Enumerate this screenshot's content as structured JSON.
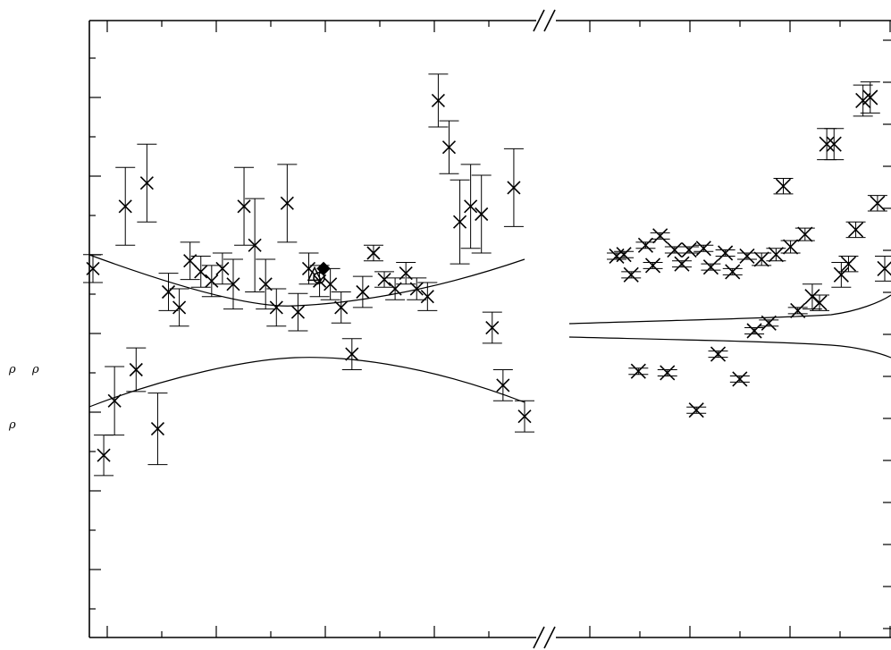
{
  "chart_data": {
    "type": "scatter",
    "title": "",
    "xlabel": "",
    "ylabel_glyphs": [
      "ρ",
      "ρ",
      "ρ"
    ],
    "axis_break": "//",
    "grid": false,
    "legend": "none",
    "color": "#000000",
    "left_panel": {
      "markers": [
        {
          "y": 0.4,
          "err": 0.09
        },
        {
          "y": -0.8,
          "err": 0.13
        },
        {
          "y": -0.45,
          "err": 0.22
        },
        {
          "y": 0.8,
          "err": 0.25
        },
        {
          "y": -0.25,
          "err": 0.14
        },
        {
          "y": 0.95,
          "err": 0.25
        },
        {
          "y": -0.63,
          "err": 0.23
        },
        {
          "y": 0.25,
          "err": 0.12
        },
        {
          "y": 0.15,
          "err": 0.12
        },
        {
          "y": 0.45,
          "err": 0.12
        },
        {
          "y": 0.38,
          "err": 0.1
        },
        {
          "y": 0.32,
          "err": 0.1
        },
        {
          "y": 0.4,
          "err": 0.1
        },
        {
          "y": 0.3,
          "err": 0.16
        },
        {
          "y": 0.8,
          "err": 0.25
        },
        {
          "y": 0.55,
          "err": 0.3
        },
        {
          "y": 0.3,
          "err": 0.16
        },
        {
          "y": 0.15,
          "err": 0.12
        },
        {
          "y": 0.82,
          "err": 0.25
        },
        {
          "y": 0.12,
          "err": 0.12
        },
        {
          "y": 0.4,
          "err": 0.1
        },
        {
          "y": 0.32,
          "err": 0.1
        },
        {
          "y": 0.3,
          "err": 0.1
        },
        {
          "y": 0.15,
          "err": 0.1
        },
        {
          "y": -0.15,
          "err": 0.1
        },
        {
          "y": 0.25,
          "err": 0.1
        },
        {
          "y": 0.5,
          "err": 0.05
        },
        {
          "y": 0.33,
          "err": 0.05
        },
        {
          "y": 0.27,
          "err": 0.07
        },
        {
          "y": 0.37,
          "err": 0.07
        },
        {
          "y": 0.27,
          "err": 0.07
        },
        {
          "y": 0.22,
          "err": 0.09
        },
        {
          "y": 1.48,
          "err": 0.17
        },
        {
          "y": 1.18,
          "err": 0.17
        },
        {
          "y": 0.7,
          "err": 0.27
        },
        {
          "y": 0.8,
          "err": 0.27
        },
        {
          "y": 0.75,
          "err": 0.25
        },
        {
          "y": 0.02,
          "err": 0.1
        },
        {
          "y": -0.35,
          "err": 0.1
        },
        {
          "y": 0.92,
          "err": 0.25
        },
        {
          "y": -0.55,
          "err": 0.1
        }
      ],
      "special_markers": [
        {
          "shape": "open-triangle",
          "y": 0.36
        },
        {
          "shape": "open-circle",
          "y": 0.34
        },
        {
          "shape": "filled-diamond",
          "y": 0.4
        }
      ]
    },
    "right_panel": {
      "markers": [
        {
          "y": 0.48,
          "err": 0.02
        },
        {
          "y": 0.49,
          "err": 0.02
        },
        {
          "y": 0.36,
          "err": 0.02
        },
        {
          "y": -0.26,
          "err": 0.02
        },
        {
          "y": 0.55,
          "err": 0.02
        },
        {
          "y": 0.42,
          "err": 0.02
        },
        {
          "y": 0.61,
          "err": 0.02
        },
        {
          "y": -0.27,
          "err": 0.02
        },
        {
          "y": 0.52,
          "err": 0.02
        },
        {
          "y": 0.43,
          "err": 0.02
        },
        {
          "y": 0.52,
          "err": 0.02
        },
        {
          "y": -0.51,
          "err": 0.02
        },
        {
          "y": 0.53,
          "err": 0.02
        },
        {
          "y": 0.41,
          "err": 0.02
        },
        {
          "y": -0.15,
          "err": 0.02
        },
        {
          "y": 0.5,
          "err": 0.02
        },
        {
          "y": 0.38,
          "err": 0.02
        },
        {
          "y": -0.31,
          "err": 0.02
        },
        {
          "y": 0.48,
          "err": 0.02
        },
        {
          "y": 0.0,
          "err": 0.02
        },
        {
          "y": 0.46,
          "err": 0.04
        },
        {
          "y": 0.05,
          "err": 0.02
        },
        {
          "y": 0.49,
          "err": 0.04
        },
        {
          "y": 0.93,
          "err": 0.05
        },
        {
          "y": 0.54,
          "err": 0.04
        },
        {
          "y": 0.13,
          "err": 0.02
        },
        {
          "y": 0.62,
          "err": 0.04
        },
        {
          "y": 0.22,
          "err": 0.08
        },
        {
          "y": 0.18,
          "err": 0.05
        },
        {
          "y": 1.2,
          "err": 0.1
        },
        {
          "y": 1.2,
          "err": 0.1
        },
        {
          "y": 0.36,
          "err": 0.08
        },
        {
          "y": 0.43,
          "err": 0.05
        },
        {
          "y": 0.65,
          "err": 0.05
        },
        {
          "y": 1.48,
          "err": 0.1
        },
        {
          "y": 1.5,
          "err": 0.1
        },
        {
          "y": 0.82,
          "err": 0.05
        },
        {
          "y": 0.4,
          "err": 0.08
        }
      ]
    }
  }
}
